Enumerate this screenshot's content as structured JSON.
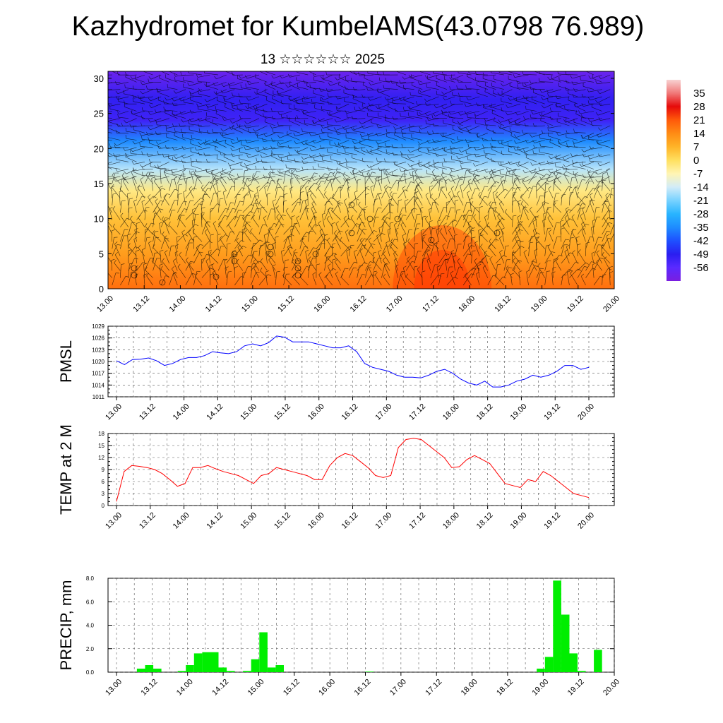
{
  "header": {
    "title": "Kazhydromet for KumbelAMS(43.0798 76.989)",
    "subtitle": "13 ☆☆☆☆☆☆ 2025"
  },
  "time_ticks": [
    "13.00",
    "13.12",
    "14.00",
    "14.12",
    "15.00",
    "15.12",
    "16.00",
    "16.12",
    "17.00",
    "17.12",
    "18.00",
    "18.12",
    "19.00",
    "19.12",
    "20.00"
  ],
  "chart_data": [
    {
      "type": "heatmap",
      "name": "temperature-wind-cross-section",
      "x_tick_labels": [
        "13.00",
        "13.12",
        "14.00",
        "14.12",
        "15.00",
        "15.12",
        "16.00",
        "16.12",
        "17.00",
        "17.12",
        "18.00",
        "18.12",
        "19.00",
        "19.12",
        "20.00"
      ],
      "ylim": [
        0,
        31
      ],
      "y_ticks": [
        0,
        5,
        10,
        15,
        20,
        25,
        30
      ],
      "colorbar": {
        "labels": [
          "35",
          "28",
          "21",
          "14",
          "7",
          "0",
          "-7",
          "-14",
          "-21",
          "-28",
          "-35",
          "-42",
          "-49",
          "-56"
        ],
        "range": [
          -63,
          42
        ],
        "stops": [
          {
            "v": -63,
            "c": "#7a1ee0"
          },
          {
            "v": -56,
            "c": "#5a2aff"
          },
          {
            "v": -49,
            "c": "#2a1ef0"
          },
          {
            "v": -42,
            "c": "#1e50ff"
          },
          {
            "v": -35,
            "c": "#1e8cff"
          },
          {
            "v": -28,
            "c": "#28b4ff"
          },
          {
            "v": -21,
            "c": "#78d2ff"
          },
          {
            "v": -14,
            "c": "#d2ecf8"
          },
          {
            "v": -7,
            "c": "#fff5b4"
          },
          {
            "v": 0,
            "c": "#ffe060"
          },
          {
            "v": 7,
            "c": "#ffb428"
          },
          {
            "v": 14,
            "c": "#ff8c14"
          },
          {
            "v": 21,
            "c": "#ff5a0a"
          },
          {
            "v": 28,
            "c": "#e60a0a"
          },
          {
            "v": 35,
            "c": "#f07878"
          },
          {
            "v": 42,
            "c": "#f8d2d2"
          }
        ]
      },
      "vertical_temperature_profile": [
        {
          "level": 0,
          "temp": 18
        },
        {
          "level": 5,
          "temp": 11
        },
        {
          "level": 10,
          "temp": 5
        },
        {
          "level": 14,
          "temp": -3
        },
        {
          "level": 17,
          "temp": -16
        },
        {
          "level": 21,
          "temp": -35
        },
        {
          "level": 24,
          "temp": -52
        },
        {
          "level": 27,
          "temp": -50
        },
        {
          "level": 31,
          "temp": -60
        }
      ],
      "notes": "Filled contours of temperature with wind barbs overlay"
    },
    {
      "type": "line",
      "ylabel": "PMSL",
      "color": "#0000ff",
      "ylim": [
        1011,
        1029
      ],
      "y_ticks": [
        1011,
        1014,
        1017,
        1020,
        1023,
        1026,
        1029
      ],
      "x_tick_labels": [
        "13.00",
        "13.12",
        "14.00",
        "14.12",
        "15.00",
        "15.12",
        "16.00",
        "16.12",
        "17.00",
        "17.12",
        "18.00",
        "18.12",
        "19.00",
        "19.12",
        "20.00"
      ],
      "values": [
        1020.2,
        1019.2,
        1020.5,
        1020.6,
        1020.9,
        1020.2,
        1019.0,
        1019.5,
        1020.5,
        1021.0,
        1021.0,
        1021.5,
        1022.5,
        1022.2,
        1022.0,
        1022.5,
        1024.0,
        1024.5,
        1024.0,
        1024.8,
        1026.5,
        1026.2,
        1025.0,
        1025.0,
        1025.0,
        1024.5,
        1024.0,
        1023.5,
        1023.5,
        1024.0,
        1022.5,
        1019.5,
        1018.5,
        1018.0,
        1017.5,
        1016.5,
        1016.0,
        1016.0,
        1015.8,
        1016.5,
        1017.5,
        1018.0,
        1017.0,
        1015.5,
        1014.5,
        1014.0,
        1015.0,
        1013.5,
        1013.5,
        1014.0,
        1015.0,
        1015.5,
        1016.5,
        1016.0,
        1016.5,
        1017.5,
        1019.0,
        1019.0,
        1018.0,
        1018.5
      ]
    },
    {
      "type": "line",
      "ylabel": "TEMP at 2 M",
      "color": "#ff0000",
      "ylim": [
        0,
        18
      ],
      "y_ticks": [
        0,
        3,
        6,
        9,
        12,
        15,
        18
      ],
      "x_tick_labels": [
        "13.00",
        "13.12",
        "14.00",
        "14.12",
        "15.00",
        "15.12",
        "16.00",
        "16.12",
        "17.00",
        "17.12",
        "18.00",
        "18.12",
        "19.00",
        "19.12",
        "20.00"
      ],
      "values": [
        1.0,
        8.5,
        10.0,
        9.8,
        9.5,
        9.0,
        8.0,
        6.5,
        4.8,
        5.5,
        9.5,
        9.5,
        10.0,
        9.2,
        8.5,
        8.0,
        7.5,
        6.5,
        5.5,
        7.5,
        8.0,
        9.5,
        9.0,
        8.5,
        8.0,
        7.5,
        6.5,
        6.5,
        10.0,
        12.0,
        13.0,
        12.5,
        11.0,
        9.5,
        7.5,
        7.0,
        7.5,
        14.5,
        16.5,
        16.8,
        16.5,
        15.0,
        13.5,
        12.0,
        9.5,
        9.7,
        11.5,
        12.5,
        11.5,
        10.5,
        8.0,
        5.5,
        5.0,
        4.5,
        6.5,
        6.0,
        8.5,
        7.5,
        6.0,
        4.5,
        3.0,
        2.5,
        2.0
      ]
    },
    {
      "type": "bar",
      "ylabel": "PRECIP, mm",
      "color": "#00ee00",
      "ylim": [
        0,
        8.0
      ],
      "y_ticks": [
        "0.0",
        "2.0",
        "4.0",
        "6.0",
        "8.0"
      ],
      "x_tick_labels": [
        "13.00",
        "13.12",
        "14.00",
        "14.12",
        "15.00",
        "15.12",
        "16.00",
        "16.12",
        "17.00",
        "17.12",
        "18.00",
        "18.12",
        "19.00",
        "19.12",
        "20.00"
      ],
      "values": [
        0,
        0,
        0,
        0.3,
        0.6,
        0.3,
        0,
        0,
        0.1,
        0.6,
        1.6,
        1.7,
        1.7,
        0.4,
        0.1,
        0,
        0.1,
        1.1,
        3.4,
        0.4,
        0.6,
        0,
        0,
        0,
        0,
        0,
        0,
        0,
        0,
        0,
        0,
        0.05,
        0,
        0,
        0,
        0,
        0,
        0,
        0,
        0,
        0,
        0,
        0,
        0,
        0,
        0,
        0,
        0,
        0,
        0,
        0,
        0,
        0.3,
        1.3,
        7.8,
        4.9,
        1.6,
        0.1,
        0,
        1.9,
        0,
        0
      ]
    }
  ]
}
